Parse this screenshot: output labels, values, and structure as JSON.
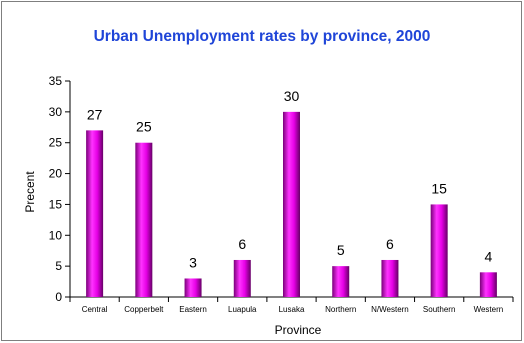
{
  "chart_data": {
    "type": "bar",
    "title": "Urban Unemployment rates by province, 2000",
    "xlabel": "Province",
    "ylabel": "Precent",
    "categories": [
      "Central",
      "Copperbelt",
      "Eastern",
      "Luapula",
      "Lusaka",
      "Northern",
      "N/Western",
      "Southern",
      "Western"
    ],
    "values": [
      27,
      25,
      3,
      6,
      30,
      5,
      6,
      15,
      4
    ],
    "data_labels": [
      "27",
      "25",
      "3",
      "6",
      "30",
      "5",
      "6",
      "15",
      "4"
    ],
    "ylim": [
      0,
      35
    ],
    "yticks": [
      "0",
      "5",
      "10",
      "15",
      "20",
      "25",
      "30",
      "35"
    ],
    "grid": false,
    "bar_color": "#cc00cc"
  }
}
